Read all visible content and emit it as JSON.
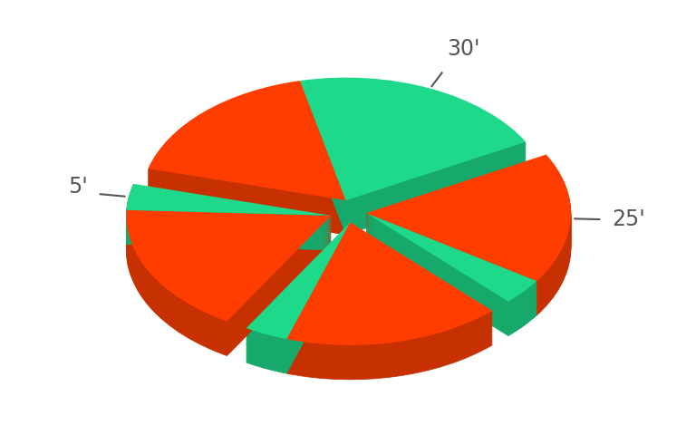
{
  "chart_data": {
    "type": "pie",
    "values": [
      25,
      30,
      25,
      5,
      25,
      5,
      25,
      5
    ],
    "value_labels": [
      null,
      "30'",
      "25'",
      null,
      null,
      null,
      null,
      "5'"
    ],
    "colors": [
      "#ff3d00",
      "#1ed98a",
      "#ff3d00",
      "#1ed98a",
      "#ff3d00",
      "#1ed98a",
      "#ff3d00",
      "#1ed98a"
    ]
  }
}
